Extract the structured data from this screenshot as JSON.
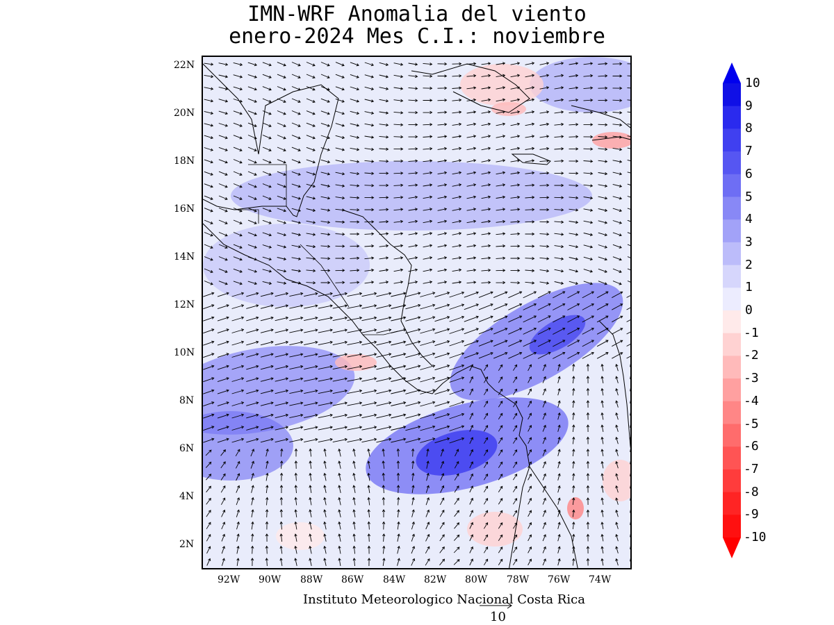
{
  "title": {
    "line1": "IMN-WRF Anomalia del viento",
    "line2": "enero-2024 Mes C.I.: noviembre"
  },
  "map": {
    "lat_labels": [
      "22N",
      "20N",
      "18N",
      "16N",
      "14N",
      "12N",
      "10N",
      "8N",
      "6N",
      "4N",
      "2N"
    ],
    "lon_labels": [
      "92W",
      "90W",
      "88W",
      "86W",
      "84W",
      "82W",
      "80W",
      "78W",
      "76W",
      "74W"
    ],
    "background_color": "#e9ecfb"
  },
  "footer": {
    "credit": "Instituto Meteorologico Nacional Costa Rica",
    "reference_vector_value": "10"
  },
  "colorbar": {
    "labels": [
      "10",
      "9",
      "8",
      "7",
      "6",
      "5",
      "4",
      "3",
      "2",
      "1",
      "0",
      "-1",
      "-2",
      "-3",
      "-4",
      "-5",
      "-6",
      "-7",
      "-8",
      "-9",
      "-10"
    ],
    "colors": [
      "#1010e6",
      "#2a2aee",
      "#4040f0",
      "#5656f2",
      "#6e6ef4",
      "#8888f6",
      "#a2a2f8",
      "#bcbcfa",
      "#d6d6fc",
      "#ececfe",
      "#ffeaea",
      "#ffd2d2",
      "#ffbaba",
      "#ffa0a0",
      "#ff8686",
      "#ff6c6c",
      "#ff5454",
      "#ff3c3c",
      "#ff2424",
      "#ff1010"
    ]
  }
}
